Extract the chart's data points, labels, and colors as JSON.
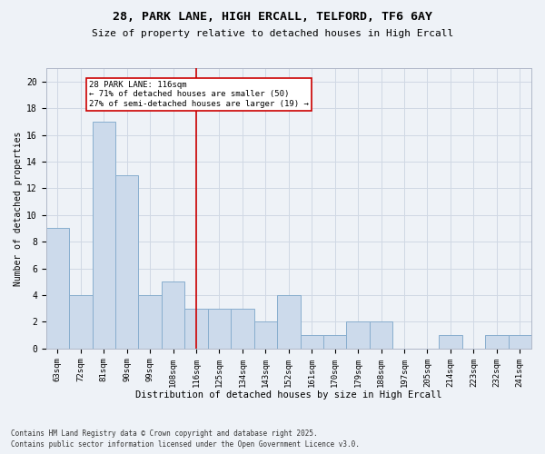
{
  "title_line1": "28, PARK LANE, HIGH ERCALL, TELFORD, TF6 6AY",
  "title_line2": "Size of property relative to detached houses in High Ercall",
  "xlabel": "Distribution of detached houses by size in High Ercall",
  "ylabel": "Number of detached properties",
  "categories": [
    "63sqm",
    "72sqm",
    "81sqm",
    "90sqm",
    "99sqm",
    "108sqm",
    "116sqm",
    "125sqm",
    "134sqm",
    "143sqm",
    "152sqm",
    "161sqm",
    "170sqm",
    "179sqm",
    "188sqm",
    "197sqm",
    "205sqm",
    "214sqm",
    "223sqm",
    "232sqm",
    "241sqm"
  ],
  "values": [
    9,
    4,
    17,
    13,
    4,
    5,
    3,
    3,
    3,
    2,
    4,
    1,
    1,
    2,
    2,
    0,
    0,
    1,
    0,
    1,
    1
  ],
  "bar_color": "#ccdaeb",
  "bar_edgecolor": "#88aece",
  "highlight_index": 6,
  "highlight_line_color": "#cc0000",
  "annotation_text": "28 PARK LANE: 116sqm\n← 71% of detached houses are smaller (50)\n27% of semi-detached houses are larger (19) →",
  "annotation_box_color": "#cc0000",
  "ylim": [
    0,
    21
  ],
  "yticks": [
    0,
    2,
    4,
    6,
    8,
    10,
    12,
    14,
    16,
    18,
    20
  ],
  "footnote1": "Contains HM Land Registry data © Crown copyright and database right 2025.",
  "footnote2": "Contains public sector information licensed under the Open Government Licence v3.0.",
  "background_color": "#eef2f7",
  "grid_color": "#d0d8e4",
  "title1_fontsize": 9.5,
  "title2_fontsize": 8.0,
  "xlabel_fontsize": 7.5,
  "ylabel_fontsize": 7.0,
  "tick_fontsize": 6.5,
  "annot_fontsize": 6.5,
  "footnote_fontsize": 5.5
}
